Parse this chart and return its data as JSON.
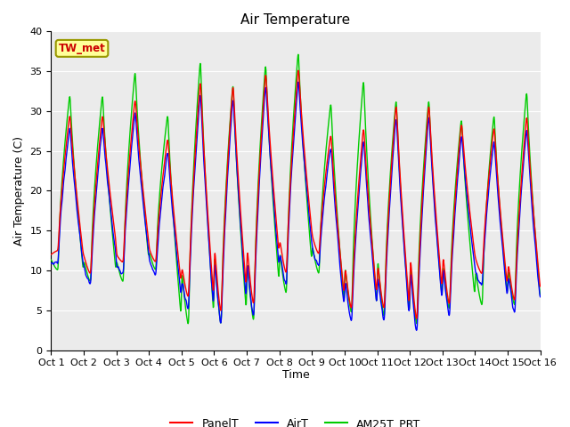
{
  "title": "Air Temperature",
  "ylabel": "Air Temperature (C)",
  "xlabel": "Time",
  "ylim": [
    0,
    40
  ],
  "xlim": [
    0,
    15
  ],
  "x_tick_labels": [
    "Oct 1",
    "Oct 2",
    "Oct 3",
    "Oct 4",
    "Oct 5",
    "Oct 6",
    "Oct 7",
    "Oct 8",
    "Oct 9",
    "Oct 10",
    "Oct 11",
    "Oct 12",
    "Oct 13",
    "Oct 14",
    "Oct 15",
    "Oct 16"
  ],
  "station_label": "TW_met",
  "line_colors": {
    "PanelT": "#ff0000",
    "AirT": "#0000ff",
    "AM25T_PRT": "#00cc00"
  },
  "line_width": 1.0,
  "bg_color": "#ebebeb",
  "grid_color": "#ffffff",
  "figsize": [
    6.4,
    4.8
  ],
  "dpi": 100
}
